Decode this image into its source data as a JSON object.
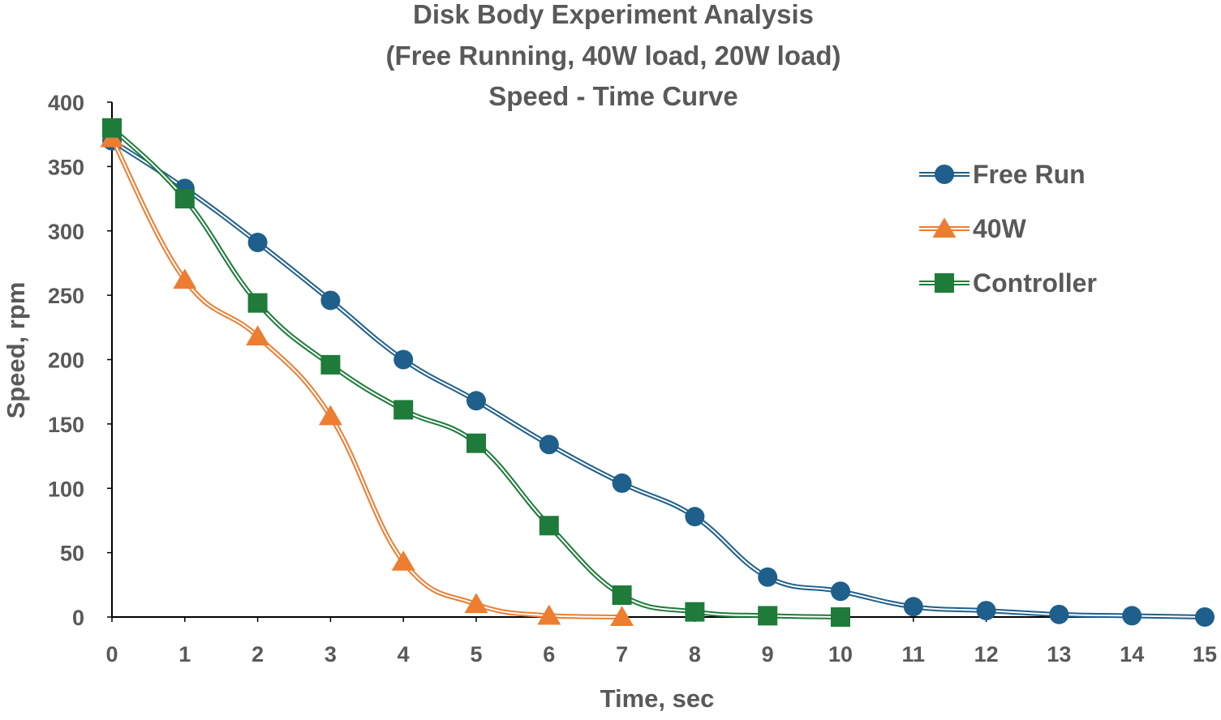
{
  "chart_data": {
    "type": "line",
    "title_lines": [
      "Disk Body Experiment Analysis",
      "(Free Running, 40W load, 20W load)",
      "Speed - Time Curve"
    ],
    "xlabel": "Time, sec",
    "ylabel": "Speed, rpm",
    "xlim": [
      0,
      15
    ],
    "ylim": [
      0,
      400
    ],
    "x_ticks": [
      0,
      1,
      2,
      3,
      4,
      5,
      6,
      7,
      8,
      9,
      10,
      11,
      12,
      13,
      14,
      15
    ],
    "y_ticks": [
      0,
      50,
      100,
      150,
      200,
      250,
      300,
      350,
      400
    ],
    "grid": false,
    "legend_position": "right",
    "series": [
      {
        "name": "Free Run",
        "marker": "circle",
        "color": "#1F5F8B",
        "x": [
          0,
          1,
          2,
          3,
          4,
          5,
          6,
          7,
          8,
          9,
          10,
          11,
          12,
          13,
          14,
          15
        ],
        "values": [
          370,
          333,
          291,
          246,
          200,
          168,
          134,
          104,
          78,
          31,
          20,
          8,
          5,
          2,
          1,
          0
        ]
      },
      {
        "name": "40W",
        "marker": "triangle",
        "color": "#ED7D31",
        "x": [
          0,
          1,
          2,
          3,
          4,
          5,
          6,
          7
        ],
        "values": [
          372,
          262,
          218,
          156,
          43,
          10,
          1,
          0
        ]
      },
      {
        "name": "Controller",
        "marker": "square",
        "color": "#1E7B3A",
        "x": [
          0,
          1,
          2,
          3,
          4,
          5,
          6,
          7,
          8,
          9,
          10
        ],
        "values": [
          380,
          325,
          244,
          196,
          161,
          135,
          71,
          17,
          4,
          1,
          0
        ]
      }
    ]
  }
}
